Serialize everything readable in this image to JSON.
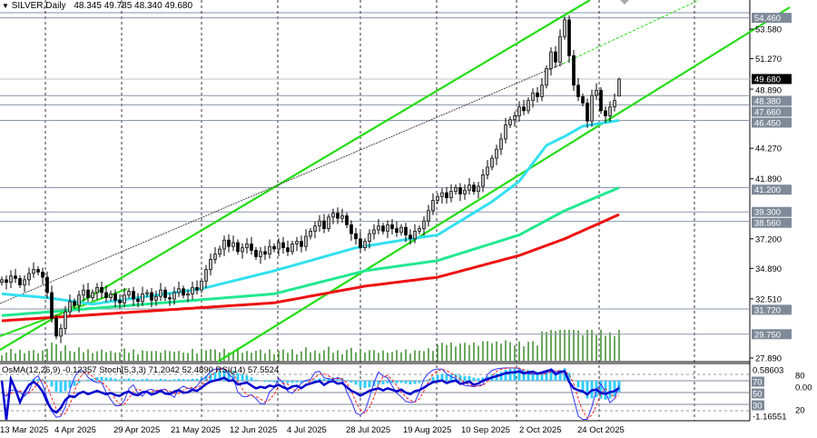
{
  "header": {
    "symbol_timeframe": "SILVER,Daily",
    "ohlc": "48.345 49.785 48.340 49.680",
    "dropdown_icon": "triangle-down-icon"
  },
  "indicator_panel": {
    "label": "OsMA(12,26,9) -0.12357  Stoch(5,3,3) 71.2042 52.4890  RSI(14) 57.5524",
    "axis_top": "0.58603",
    "axis_bottom": "-1.16551",
    "axis_zero": "0.00",
    "levels": [
      "80",
      "70",
      "50",
      "30",
      "20"
    ]
  },
  "colors": {
    "ma_fast": "#33e0f0",
    "ma_mid": "#22e890",
    "ma_slow": "#ee1111",
    "channel": "#22dd11",
    "volume": "#3a8a2a",
    "stoch_main": "#3333ff",
    "stoch_signal": "#ff2222",
    "rsi": "#0000cc",
    "osma": "#33ccff"
  },
  "chart_data": {
    "type": "candlestick",
    "symbol": "SILVER",
    "timeframe": "Daily",
    "x_tick_labels": [
      "13 Mar 2025",
      "4 Apr 2025",
      "29 Apr 2025",
      "21 May 2025",
      "12 Jun 2025",
      "4 Jul 2025",
      "28 Jul 2025",
      "19 Aug 2025",
      "10 Sep 2025",
      "2 Oct 2025",
      "24 Oct 2025"
    ],
    "y_tick_labels": [
      "53.580",
      "51.270",
      "48.890",
      "44.270",
      "41.890",
      "37.200",
      "34.890",
      "32.510",
      "27.890"
    ],
    "ylim": [
      27.89,
      55.8
    ],
    "closes": [
      34.0,
      33.8,
      34.3,
      34.1,
      33.6,
      34.0,
      34.5,
      34.8,
      34.6,
      34.2,
      33.0,
      31.0,
      29.6,
      30.2,
      31.5,
      32.3,
      32.0,
      32.8,
      33.2,
      32.6,
      33.0,
      33.4,
      33.0,
      32.6,
      32.9,
      32.4,
      32.2,
      32.8,
      33.1,
      32.5,
      32.3,
      32.9,
      33.0,
      32.4,
      32.7,
      33.2,
      32.6,
      32.5,
      33.0,
      33.3,
      32.8,
      32.9,
      33.4,
      33.2,
      33.9,
      34.8,
      35.6,
      36.0,
      36.4,
      37.1,
      36.6,
      36.9,
      36.2,
      36.5,
      36.8,
      36.3,
      35.8,
      36.2,
      36.0,
      36.6,
      36.4,
      36.9,
      36.5,
      36.2,
      36.8,
      37.0,
      36.6,
      37.4,
      37.8,
      38.2,
      38.6,
      38.0,
      38.9,
      39.2,
      38.8,
      39.0,
      38.3,
      37.6,
      37.2,
      36.5,
      37.0,
      37.6,
      37.9,
      38.2,
      37.8,
      38.3,
      38.0,
      37.7,
      38.1,
      37.5,
      37.2,
      37.8,
      38.0,
      38.6,
      39.4,
      40.2,
      40.5,
      40.8,
      40.4,
      40.9,
      41.2,
      40.7,
      41.0,
      41.4,
      40.9,
      41.3,
      42.2,
      42.8,
      43.5,
      44.2,
      45.0,
      46.1,
      46.5,
      46.8,
      47.5,
      47.2,
      48.0,
      48.6,
      48.3,
      49.2,
      50.5,
      51.8,
      51.0,
      53.0,
      54.3,
      51.5,
      49.2,
      48.3,
      47.8,
      46.4,
      48.4,
      48.8,
      47.2,
      46.8,
      47.5,
      48.0,
      49.68
    ],
    "last_bar": {
      "open": 48.345,
      "high": 49.785,
      "low": 48.34,
      "close": 49.68
    },
    "moving_averages": [
      {
        "color": "#33e0f0",
        "points": [
          [
            0,
            32.9
          ],
          [
            10,
            32.6
          ],
          [
            20,
            32.1
          ],
          [
            44,
            33.3
          ],
          [
            60,
            34.7
          ],
          [
            78,
            36.5
          ],
          [
            90,
            37.2
          ],
          [
            96,
            37.5
          ],
          [
            108,
            40.1
          ],
          [
            114,
            41.7
          ],
          [
            120,
            44.5
          ],
          [
            124,
            45.2
          ],
          [
            128,
            46.0
          ],
          [
            136,
            46.45
          ]
        ]
      },
      {
        "color": "#22e890",
        "points": [
          [
            0,
            31.2
          ],
          [
            60,
            32.9
          ],
          [
            80,
            34.7
          ],
          [
            96,
            35.5
          ],
          [
            114,
            37.5
          ],
          [
            124,
            39.4
          ],
          [
            136,
            41.2
          ]
        ]
      },
      {
        "color": "#ee1111",
        "points": [
          [
            0,
            30.8
          ],
          [
            60,
            32.2
          ],
          [
            80,
            33.5
          ],
          [
            96,
            34.2
          ],
          [
            114,
            35.9
          ],
          [
            124,
            37.2
          ],
          [
            136,
            39.1
          ]
        ]
      }
    ],
    "horizontal_levels": [
      {
        "value": "54.460",
        "style": "gray"
      },
      {
        "value": "49.680",
        "style": "current"
      },
      {
        "value": "48.380",
        "style": "gray"
      },
      {
        "value": "47.660",
        "style": "gray"
      },
      {
        "value": "46.450",
        "style": "gray"
      },
      {
        "value": "41.200",
        "style": "gray"
      },
      {
        "value": "39.300",
        "style": "gray"
      },
      {
        "value": "38.560",
        "style": "gray"
      },
      {
        "value": "31.720",
        "style": "gray"
      },
      {
        "value": "29.750",
        "style": "gray"
      }
    ]
  }
}
